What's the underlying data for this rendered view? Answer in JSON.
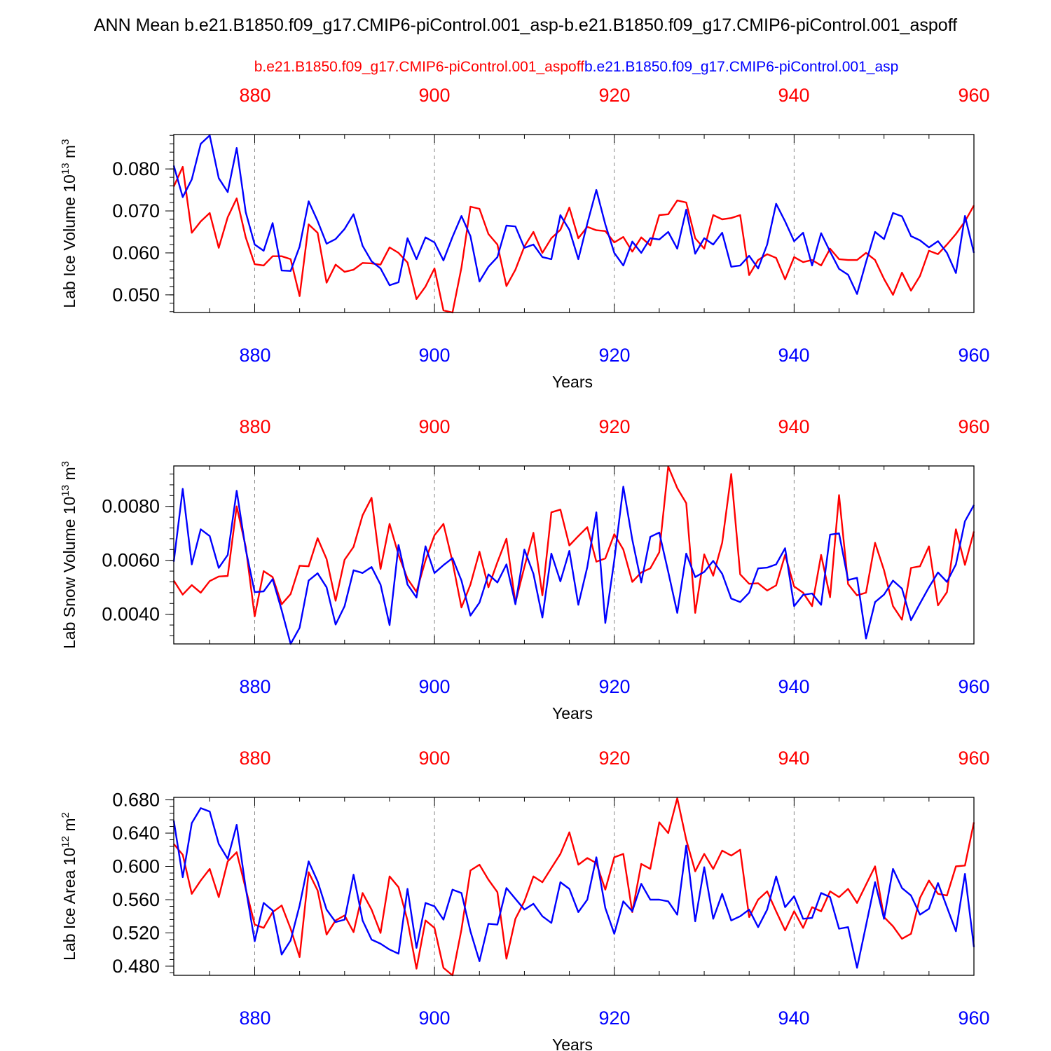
{
  "figure": {
    "title": "ANN Mean b.e21.B1850.f09_g17.CMIP6-piControl.001_asp-b.e21.B1850.f09_g17.CMIP6-piControl.001_aspoff",
    "legend_red": "b.e21.B1850.f09_g17.CMIP6-piControl.001_aspoff",
    "legend_blue": "b.e21.B1850.f09_g17.CMIP6-piControl.001_asp",
    "colors": {
      "red": "#ff0000",
      "blue": "#0000ff"
    }
  },
  "chart_data": [
    {
      "type": "line",
      "ylabel": "Lab Ice Volume 10",
      "ylabel_sup": "13",
      "ylabel_unit": " m",
      "ylabel_unit_sup": "3",
      "xlabel": "Years",
      "xlim": [
        871,
        960
      ],
      "ylim": [
        0.0458,
        0.0882
      ],
      "x_ticks": [
        "880",
        "900",
        "920",
        "940",
        "960"
      ],
      "y_ticks": [
        "0.050",
        "0.060",
        "0.070",
        "0.080"
      ],
      "y_tick_values": [
        0.05,
        0.06,
        0.07,
        0.08
      ],
      "x": [
        871,
        872,
        873,
        874,
        875,
        876,
        877,
        878,
        879,
        880,
        881,
        882,
        883,
        884,
        885,
        886,
        887,
        888,
        889,
        890,
        891,
        892,
        893,
        894,
        895,
        896,
        897,
        898,
        899,
        900,
        901,
        902,
        903,
        904,
        905,
        906,
        907,
        908,
        909,
        910,
        911,
        912,
        913,
        914,
        915,
        916,
        917,
        918,
        919,
        920,
        921,
        922,
        923,
        924,
        925,
        926,
        927,
        928,
        929,
        930,
        931,
        932,
        933,
        934,
        935,
        936,
        937,
        938,
        939,
        940,
        941,
        942,
        943,
        944,
        945,
        946,
        947,
        948,
        949,
        950,
        951,
        952,
        953,
        954,
        955,
        956,
        957,
        958,
        959,
        960
      ],
      "series": [
        {
          "name": "b.e21.B1850.f09_g17.CMIP6-piControl.001_aspoff",
          "color": "#ff0000",
          "values": [
            0.0758,
            0.0805,
            0.0648,
            0.0675,
            0.0695,
            0.0612,
            0.0685,
            0.073,
            0.0637,
            0.0573,
            0.057,
            0.0592,
            0.0592,
            0.0585,
            0.0497,
            0.0668,
            0.0648,
            0.0529,
            0.0572,
            0.0555,
            0.056,
            0.0576,
            0.0575,
            0.0572,
            0.0613,
            0.06,
            0.0577,
            0.049,
            0.052,
            0.0563,
            0.0463,
            0.0458,
            0.0565,
            0.071,
            0.0705,
            0.0645,
            0.062,
            0.0521,
            0.056,
            0.0615,
            0.065,
            0.06,
            0.0635,
            0.0655,
            0.0708,
            0.0635,
            0.0662,
            0.0654,
            0.0652,
            0.0625,
            0.0638,
            0.0603,
            0.0637,
            0.0618,
            0.069,
            0.0692,
            0.0725,
            0.072,
            0.0635,
            0.061,
            0.069,
            0.068,
            0.0683,
            0.069,
            0.0547,
            0.0583,
            0.0597,
            0.0588,
            0.0537,
            0.059,
            0.0578,
            0.0583,
            0.057,
            0.061,
            0.0585,
            0.0583,
            0.0583,
            0.06,
            0.0583,
            0.0538,
            0.05,
            0.0553,
            0.051,
            0.0545,
            0.0605,
            0.0597,
            0.062,
            0.0645,
            0.0675,
            0.0713
          ]
        },
        {
          "name": "b.e21.B1850.f09_g17.CMIP6-piControl.001_asp",
          "color": "#0000ff",
          "values": [
            0.0808,
            0.0733,
            0.0775,
            0.086,
            0.088,
            0.0778,
            0.0745,
            0.085,
            0.0697,
            0.062,
            0.0605,
            0.0671,
            0.0558,
            0.0557,
            0.0615,
            0.0723,
            0.0676,
            0.0622,
            0.0633,
            0.0657,
            0.0692,
            0.0617,
            0.058,
            0.0563,
            0.0523,
            0.053,
            0.0635,
            0.0585,
            0.0637,
            0.0625,
            0.0582,
            0.0638,
            0.0688,
            0.064,
            0.0532,
            0.0567,
            0.059,
            0.0665,
            0.0663,
            0.0612,
            0.062,
            0.059,
            0.0585,
            0.069,
            0.0655,
            0.0585,
            0.067,
            0.075,
            0.0668,
            0.06,
            0.057,
            0.0627,
            0.06,
            0.0635,
            0.0632,
            0.065,
            0.061,
            0.0703,
            0.0598,
            0.0635,
            0.062,
            0.0648,
            0.0567,
            0.057,
            0.0593,
            0.0563,
            0.062,
            0.0717,
            0.0675,
            0.0628,
            0.0648,
            0.057,
            0.0647,
            0.0603,
            0.0562,
            0.0548,
            0.0502,
            0.0578,
            0.065,
            0.0633,
            0.0695,
            0.0687,
            0.064,
            0.063,
            0.0613,
            0.0628,
            0.06,
            0.0552,
            0.0688,
            0.06
          ]
        }
      ]
    },
    {
      "type": "line",
      "ylabel": "Lab Snow Volume 10",
      "ylabel_sup": "13",
      "ylabel_unit": " m",
      "ylabel_unit_sup": "3",
      "xlabel": "Years",
      "xlim": [
        871,
        960
      ],
      "ylim": [
        0.0029,
        0.0095
      ],
      "x_ticks": [
        "880",
        "900",
        "920",
        "940",
        "960"
      ],
      "y_ticks": [
        "0.0040",
        "0.0060",
        "0.0080"
      ],
      "y_tick_values": [
        0.004,
        0.006,
        0.008
      ],
      "x": [
        871,
        872,
        873,
        874,
        875,
        876,
        877,
        878,
        879,
        880,
        881,
        882,
        883,
        884,
        885,
        886,
        887,
        888,
        889,
        890,
        891,
        892,
        893,
        894,
        895,
        896,
        897,
        898,
        899,
        900,
        901,
        902,
        903,
        904,
        905,
        906,
        907,
        908,
        909,
        910,
        911,
        912,
        913,
        914,
        915,
        916,
        917,
        918,
        919,
        920,
        921,
        922,
        923,
        924,
        925,
        926,
        927,
        928,
        929,
        930,
        931,
        932,
        933,
        934,
        935,
        936,
        937,
        938,
        939,
        940,
        941,
        942,
        943,
        944,
        945,
        946,
        947,
        948,
        949,
        950,
        951,
        952,
        953,
        954,
        955,
        956,
        957,
        958,
        959,
        960
      ],
      "series": [
        {
          "name": "b.e21.B1850.f09_g17.CMIP6-piControl.001_aspoff",
          "color": "#ff0000",
          "values": [
            0.00525,
            0.00473,
            0.00508,
            0.0048,
            0.00523,
            0.0054,
            0.00542,
            0.008,
            0.0065,
            0.00392,
            0.0056,
            0.00538,
            0.00437,
            0.00475,
            0.0058,
            0.00578,
            0.00682,
            0.00605,
            0.0045,
            0.00602,
            0.0065,
            0.00767,
            0.00832,
            0.00568,
            0.00735,
            0.0062,
            0.00532,
            0.00483,
            0.006,
            0.00693,
            0.00735,
            0.00595,
            0.00425,
            0.0051,
            0.00632,
            0.005,
            0.00593,
            0.0068,
            0.00443,
            0.00575,
            0.00702,
            0.0047,
            0.00778,
            0.00788,
            0.00655,
            0.0069,
            0.00723,
            0.00595,
            0.00607,
            0.00697,
            0.0064,
            0.0052,
            0.00555,
            0.0057,
            0.0063,
            0.00948,
            0.00868,
            0.00812,
            0.00405,
            0.00622,
            0.00543,
            0.00665,
            0.0092,
            0.00548,
            0.00513,
            0.00515,
            0.00488,
            0.00507,
            0.0062,
            0.00503,
            0.0048,
            0.0043,
            0.0062,
            0.00463,
            0.00842,
            0.00512,
            0.0047,
            0.0048,
            0.00665,
            0.00563,
            0.0043,
            0.0038,
            0.00572,
            0.00578,
            0.00652,
            0.00433,
            0.00482,
            0.00715,
            0.00583,
            0.00707
          ]
        },
        {
          "name": "b.e21.B1850.f09_g17.CMIP6-piControl.001_asp",
          "color": "#0000ff",
          "values": [
            0.00595,
            0.00865,
            0.00585,
            0.00715,
            0.0069,
            0.00572,
            0.0062,
            0.00858,
            0.0064,
            0.00482,
            0.00485,
            0.0053,
            0.00415,
            0.0029,
            0.0035,
            0.00525,
            0.00552,
            0.005,
            0.00362,
            0.0043,
            0.00563,
            0.00553,
            0.00575,
            0.0051,
            0.0036,
            0.00657,
            0.0051,
            0.00462,
            0.00652,
            0.00553,
            0.00582,
            0.00608,
            0.00525,
            0.00395,
            0.00443,
            0.00548,
            0.00518,
            0.00585,
            0.00437,
            0.0064,
            0.0055,
            0.00388,
            0.00625,
            0.00522,
            0.00635,
            0.00435,
            0.00575,
            0.00778,
            0.00368,
            0.006,
            0.00873,
            0.00677,
            0.00518,
            0.00687,
            0.00703,
            0.00557,
            0.00405,
            0.00625,
            0.00538,
            0.00557,
            0.00598,
            0.0055,
            0.00458,
            0.00445,
            0.0048,
            0.0057,
            0.00573,
            0.00585,
            0.00645,
            0.0043,
            0.00472,
            0.00477,
            0.00435,
            0.00695,
            0.007,
            0.00527,
            0.00535,
            0.0031,
            0.00445,
            0.00473,
            0.00525,
            0.00495,
            0.00378,
            0.0044,
            0.005,
            0.00555,
            0.0052,
            0.00585,
            0.00745,
            0.00805
          ]
        }
      ]
    },
    {
      "type": "line",
      "ylabel": "Lab Ice Area 10",
      "ylabel_sup": "12",
      "ylabel_unit": " m",
      "ylabel_unit_sup": "2",
      "xlabel": "Years",
      "xlim": [
        871,
        960
      ],
      "ylim": [
        0.469,
        0.683
      ],
      "x_ticks": [
        "880",
        "900",
        "920",
        "940",
        "960"
      ],
      "y_ticks": [
        "0.480",
        "0.520",
        "0.560",
        "0.600",
        "0.640",
        "0.680"
      ],
      "y_tick_values": [
        0.48,
        0.52,
        0.56,
        0.6,
        0.64,
        0.68
      ],
      "x": [
        871,
        872,
        873,
        874,
        875,
        876,
        877,
        878,
        879,
        880,
        881,
        882,
        883,
        884,
        885,
        886,
        887,
        888,
        889,
        890,
        891,
        892,
        893,
        894,
        895,
        896,
        897,
        898,
        899,
        900,
        901,
        902,
        903,
        904,
        905,
        906,
        907,
        908,
        909,
        910,
        911,
        912,
        913,
        914,
        915,
        916,
        917,
        918,
        919,
        920,
        921,
        922,
        923,
        924,
        925,
        926,
        927,
        928,
        929,
        930,
        931,
        932,
        933,
        934,
        935,
        936,
        937,
        938,
        939,
        940,
        941,
        942,
        943,
        944,
        945,
        946,
        947,
        948,
        949,
        950,
        951,
        952,
        953,
        954,
        955,
        956,
        957,
        958,
        959,
        960
      ],
      "series": [
        {
          "name": "b.e21.B1850.f09_g17.CMIP6-piControl.001_aspoff",
          "color": "#ff0000",
          "values": [
            0.627,
            0.614,
            0.567,
            0.583,
            0.597,
            0.563,
            0.606,
            0.617,
            0.573,
            0.53,
            0.526,
            0.545,
            0.553,
            0.525,
            0.491,
            0.593,
            0.571,
            0.518,
            0.535,
            0.541,
            0.521,
            0.568,
            0.548,
            0.52,
            0.588,
            0.575,
            0.535,
            0.477,
            0.535,
            0.526,
            0.478,
            0.469,
            0.524,
            0.595,
            0.602,
            0.584,
            0.569,
            0.489,
            0.537,
            0.558,
            0.588,
            0.581,
            0.598,
            0.615,
            0.641,
            0.602,
            0.61,
            0.604,
            0.572,
            0.611,
            0.615,
            0.545,
            0.603,
            0.597,
            0.653,
            0.64,
            0.682,
            0.632,
            0.594,
            0.615,
            0.597,
            0.619,
            0.613,
            0.62,
            0.539,
            0.56,
            0.57,
            0.546,
            0.523,
            0.546,
            0.526,
            0.551,
            0.546,
            0.57,
            0.563,
            0.573,
            0.556,
            0.578,
            0.6,
            0.539,
            0.528,
            0.513,
            0.519,
            0.562,
            0.583,
            0.567,
            0.565,
            0.6,
            0.601,
            0.653
          ]
        },
        {
          "name": "b.e21.B1850.f09_g17.CMIP6-piControl.001_asp",
          "color": "#0000ff",
          "values": [
            0.655,
            0.587,
            0.652,
            0.67,
            0.666,
            0.627,
            0.609,
            0.65,
            0.574,
            0.51,
            0.556,
            0.547,
            0.494,
            0.511,
            0.553,
            0.606,
            0.582,
            0.548,
            0.533,
            0.536,
            0.59,
            0.535,
            0.512,
            0.507,
            0.5,
            0.495,
            0.573,
            0.502,
            0.556,
            0.552,
            0.536,
            0.572,
            0.568,
            0.522,
            0.486,
            0.531,
            0.53,
            0.574,
            0.561,
            0.548,
            0.555,
            0.54,
            0.532,
            0.581,
            0.573,
            0.545,
            0.56,
            0.611,
            0.55,
            0.519,
            0.558,
            0.546,
            0.579,
            0.56,
            0.56,
            0.558,
            0.542,
            0.625,
            0.534,
            0.599,
            0.537,
            0.567,
            0.535,
            0.54,
            0.548,
            0.527,
            0.548,
            0.588,
            0.551,
            0.564,
            0.537,
            0.538,
            0.568,
            0.563,
            0.525,
            0.527,
            0.478,
            0.529,
            0.581,
            0.537,
            0.597,
            0.574,
            0.565,
            0.542,
            0.549,
            0.58,
            0.551,
            0.522,
            0.591,
            0.503
          ]
        }
      ]
    }
  ]
}
